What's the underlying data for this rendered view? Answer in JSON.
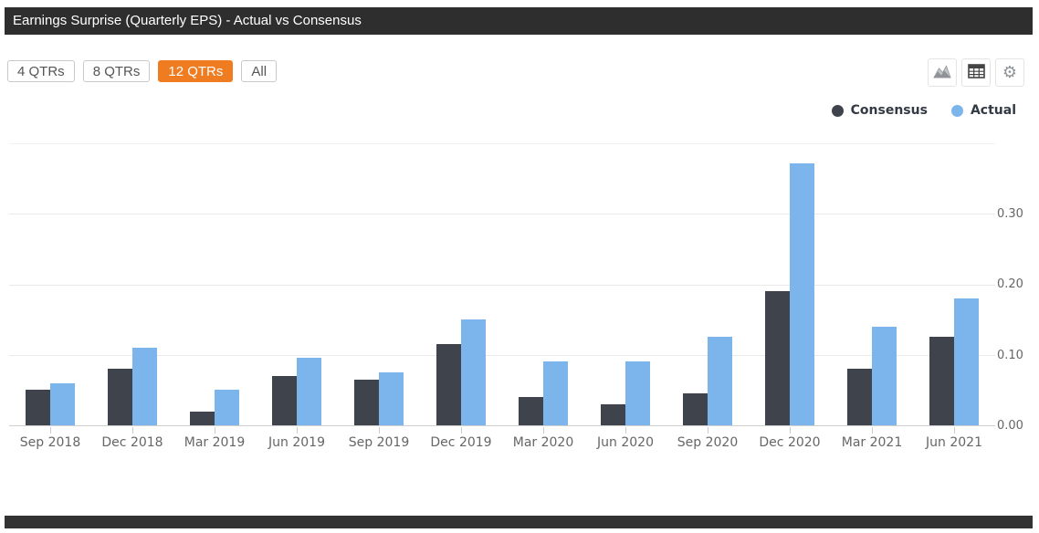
{
  "header": {
    "title": "Earnings Surprise (Quarterly EPS) - Actual vs Consensus"
  },
  "toolbar": {
    "ranges": [
      {
        "label": "4 QTRs",
        "active": false
      },
      {
        "label": "8 QTRs",
        "active": false
      },
      {
        "label": "12 QTRs",
        "active": true
      },
      {
        "label": "All",
        "active": false
      }
    ],
    "icons": [
      {
        "name": "area-chart-icon"
      },
      {
        "name": "table-icon"
      },
      {
        "name": "gear-icon"
      }
    ]
  },
  "colors": {
    "accent_orange": "#f07c21",
    "titlebar_bg": "#2e2e2e",
    "footer_bg": "#333333",
    "consensus": "#3f434b",
    "actual": "#7cb5ec",
    "axis_label": "#666666"
  },
  "chart_data": {
    "type": "bar",
    "title": "Earnings Surprise (Quarterly EPS) - Actual vs Consensus",
    "categories": [
      "Sep 2018",
      "Dec 2018",
      "Mar 2019",
      "Jun 2019",
      "Sep 2019",
      "Dec 2019",
      "Mar 2020",
      "Jun 2020",
      "Sep 2020",
      "Dec 2020",
      "Mar 2021",
      "Jun 2021"
    ],
    "series": [
      {
        "name": "Consensus",
        "color": "#3f434b",
        "values": [
          0.05,
          0.08,
          0.02,
          0.07,
          0.065,
          0.115,
          0.04,
          0.03,
          0.045,
          0.19,
          0.08,
          0.125
        ]
      },
      {
        "name": "Actual",
        "color": "#7cb5ec",
        "values": [
          0.06,
          0.11,
          0.05,
          0.095,
          0.075,
          0.15,
          0.09,
          0.09,
          0.125,
          0.37,
          0.14,
          0.18
        ]
      }
    ],
    "xlabel": "",
    "ylabel": "",
    "ylim": [
      0,
      0.4
    ],
    "yticks": [
      {
        "v": 0.0,
        "label": "0.00"
      },
      {
        "v": 0.1,
        "label": "0.10"
      },
      {
        "v": 0.2,
        "label": "0.20"
      },
      {
        "v": 0.3,
        "label": "0.30"
      },
      {
        "v": 0.4,
        "label": ""
      }
    ],
    "grid": true,
    "legend_position": "top-right"
  }
}
